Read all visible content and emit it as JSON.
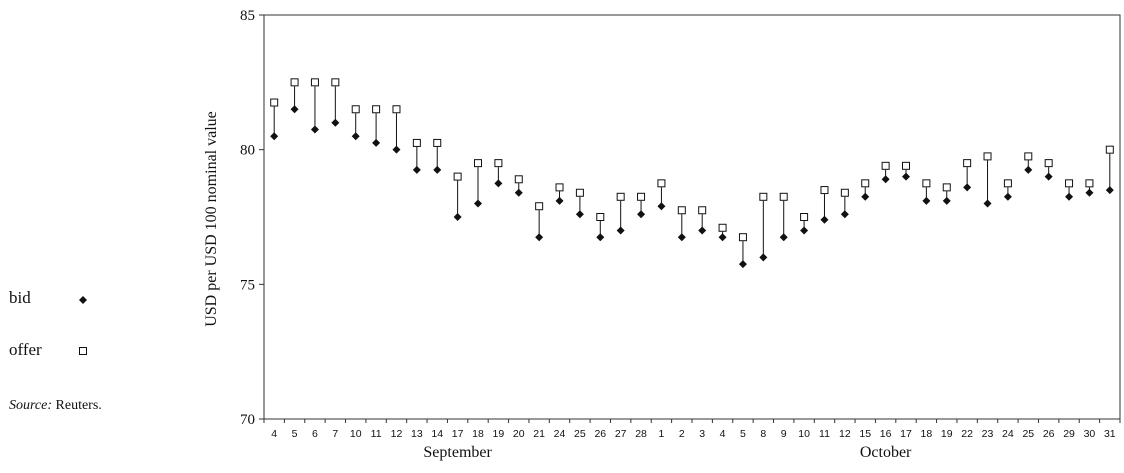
{
  "chart_data": {
    "type": "scatter",
    "title": "",
    "xlabel": "",
    "ylabel": "USD per USD 100 nominal value",
    "ylim": [
      70,
      85
    ],
    "yticks": [
      70,
      75,
      80,
      85
    ],
    "grid": false,
    "legend_placement": "left",
    "categories": [
      "4",
      "5",
      "6",
      "7",
      "10",
      "11",
      "12",
      "13",
      "14",
      "17",
      "18",
      "19",
      "20",
      "21",
      "24",
      "25",
      "26",
      "27",
      "28",
      "1",
      "2",
      "3",
      "4",
      "5",
      "8",
      "9",
      "10",
      "11",
      "12",
      "15",
      "16",
      "17",
      "18",
      "19",
      "22",
      "23",
      "24",
      "25",
      "26",
      "29",
      "30",
      "31"
    ],
    "month_groups": [
      {
        "label": "September",
        "from_index": 0,
        "to_index": 18
      },
      {
        "label": "October",
        "from_index": 19,
        "to_index": 41
      }
    ],
    "series": [
      {
        "name": "bid",
        "marker": "filled-diamond",
        "values": [
          80.5,
          81.5,
          80.75,
          81,
          80.5,
          80.25,
          80,
          79.25,
          79.25,
          77.5,
          78,
          78.75,
          78.4,
          76.75,
          78.1,
          77.6,
          76.75,
          77,
          77.6,
          77.9,
          76.75,
          77,
          76.75,
          75.75,
          76,
          76.75,
          77,
          77.4,
          77.6,
          78.25,
          78.9,
          79,
          78.1,
          78.1,
          78.6,
          78,
          78.25,
          79.25,
          79,
          78.25,
          78.4,
          78.5
        ]
      },
      {
        "name": "offer",
        "marker": "open-square",
        "values": [
          81.75,
          82.5,
          82.5,
          82.5,
          81.5,
          81.5,
          81.5,
          80.25,
          80.25,
          79,
          79.5,
          79.5,
          78.9,
          77.9,
          78.6,
          78.4,
          77.5,
          78.25,
          78.25,
          78.75,
          77.75,
          77.75,
          77.1,
          76.75,
          78.25,
          78.25,
          77.5,
          78.5,
          78.4,
          78.75,
          79.4,
          79.4,
          78.75,
          78.6,
          79.5,
          79.75,
          78.75,
          79.75,
          79.5,
          78.75,
          78.75,
          80
        ]
      }
    ]
  },
  "legend": {
    "bid_label": "bid",
    "offer_label": "offer"
  },
  "source": {
    "prefix": "Source:",
    "text": " Reuters."
  },
  "colors": {
    "marker": "#111111",
    "axis": "#333333",
    "offer_fill": "#ffffff"
  }
}
